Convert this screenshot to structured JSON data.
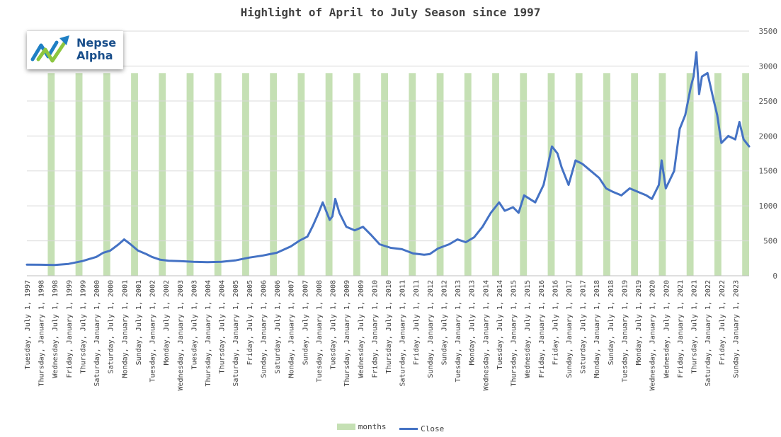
{
  "chart_data": {
    "type": "line",
    "title": "Highlight of April to July Season since 1997",
    "y_axis": {
      "side": "right",
      "min": 0,
      "max": 3500,
      "ticks": [
        0,
        500,
        1000,
        1500,
        2000,
        2500,
        3000,
        3500
      ]
    },
    "x_axis": {
      "start": "1997-07",
      "end": "2023-07"
    },
    "x_tick_labels": [
      "Tuesday, July 1, 1997",
      "Thursday, January 1, 1998",
      "Wednesday, July 1, 1998",
      "Friday, January 1, 1999",
      "Thursday, July 1, 1999",
      "Saturday, January 1, 2000",
      "Saturday, July 1, 2000",
      "Monday, January 1, 2001",
      "Sunday, July 1, 2001",
      "Tuesday, January 1, 2002",
      "Monday, July 1, 2002",
      "Wednesday, January 1, 2003",
      "Tuesday, July 1, 2003",
      "Thursday, January 1, 2004",
      "Thursday, July 1, 2004",
      "Saturday, January 1, 2005",
      "Friday, July 1, 2005",
      "Sunday, January 1, 2006",
      "Saturday, July 1, 2006",
      "Monday, January 1, 2007",
      "Sunday, July 1, 2007",
      "Tuesday, January 1, 2008",
      "Tuesday, July 1, 2008",
      "Thursday, January 1, 2009",
      "Wednesday, July 1, 2009",
      "Friday, January 1, 2010",
      "Thursday, July 1, 2010",
      "Saturday, January 1, 2011",
      "Friday, July 1, 2011",
      "Sunday, January 1, 2012",
      "Sunday, July 1, 2012",
      "Tuesday, January 1, 2013",
      "Monday, July 1, 2013",
      "Wednesday, January 1, 2014",
      "Tuesday, July 1, 2014",
      "Thursday, January 1, 2015",
      "Wednesday, July 1, 2015",
      "Friday, January 1, 2016",
      "Friday, July 1, 2016",
      "Sunday, January 1, 2017",
      "Saturday, July 1, 2017",
      "Monday, January 1, 2018",
      "Sunday, July 1, 2018",
      "Tuesday, January 1, 2019",
      "Monday, July 1, 2019",
      "Wednesday, January 1, 2020",
      "Wednesday, July 1, 2020",
      "Friday, January 1, 2021",
      "Thursday, July 1, 2021",
      "Saturday, January 1, 2022",
      "Friday, July 1, 2022",
      "Sunday, January 1, 2023"
    ],
    "season_bars": {
      "name": "months",
      "color": "#c5e0b4",
      "value": 2900,
      "start_years": [
        1998,
        1999,
        2000,
        2001,
        2002,
        2003,
        2004,
        2005,
        2006,
        2007,
        2008,
        2009,
        2010,
        2011,
        2012,
        2013,
        2014,
        2015,
        2016,
        2017,
        2018,
        2019,
        2020,
        2021,
        2022,
        2023
      ]
    },
    "series": [
      {
        "name": "Close",
        "color": "#4472c4",
        "x": [
          1997.5,
          1998.0,
          1998.5,
          1999.0,
          1999.5,
          2000.0,
          2000.25,
          2000.5,
          2000.8,
          2001.0,
          2001.2,
          2001.5,
          2001.8,
          2002.0,
          2002.3,
          2002.6,
          2003.0,
          2003.5,
          2004.0,
          2004.5,
          2005.0,
          2005.5,
          2006.0,
          2006.5,
          2007.0,
          2007.3,
          2007.6,
          2007.8,
          2008.0,
          2008.15,
          2008.4,
          2008.5,
          2008.6,
          2008.75,
          2009.0,
          2009.3,
          2009.6,
          2009.9,
          2010.2,
          2010.6,
          2011.0,
          2011.4,
          2011.8,
          2012.0,
          2012.3,
          2012.7,
          2013.0,
          2013.3,
          2013.6,
          2013.9,
          2014.2,
          2014.5,
          2014.7,
          2015.0,
          2015.2,
          2015.4,
          2015.6,
          2015.8,
          2016.1,
          2016.4,
          2016.6,
          2016.75,
          2017.0,
          2017.25,
          2017.5,
          2017.8,
          2018.1,
          2018.35,
          2018.6,
          2018.9,
          2019.2,
          2019.5,
          2019.8,
          2020.0,
          2020.25,
          2020.35,
          2020.5,
          2020.8,
          2021.0,
          2021.2,
          2021.4,
          2021.5,
          2021.6,
          2021.7,
          2021.8,
          2022.0,
          2022.2,
          2022.35,
          2022.5,
          2022.75,
          2023.0,
          2023.15,
          2023.3,
          2023.5
        ],
        "values": [
          160,
          158,
          155,
          170,
          210,
          270,
          330,
          360,
          450,
          520,
          460,
          360,
          310,
          270,
          230,
          215,
          210,
          200,
          195,
          200,
          220,
          260,
          290,
          330,
          420,
          500,
          560,
          720,
          900,
          1050,
          800,
          850,
          1100,
          900,
          700,
          650,
          700,
          580,
          450,
          400,
          380,
          320,
          300,
          310,
          390,
          450,
          520,
          480,
          550,
          700,
          900,
          1050,
          930,
          980,
          900,
          1150,
          1100,
          1050,
          1300,
          1850,
          1750,
          1550,
          1300,
          1650,
          1600,
          1500,
          1400,
          1250,
          1200,
          1150,
          1250,
          1200,
          1150,
          1100,
          1300,
          1650,
          1250,
          1500,
          2100,
          2300,
          2700,
          2850,
          3200,
          2600,
          2850,
          2900,
          2550,
          2300,
          1900,
          2000,
          1950,
          2200,
          1950,
          1850
        ]
      }
    ]
  },
  "legend": {
    "months": "months",
    "close": "Close"
  },
  "logo": {
    "line1": "Nepse",
    "line2": "Alpha"
  }
}
